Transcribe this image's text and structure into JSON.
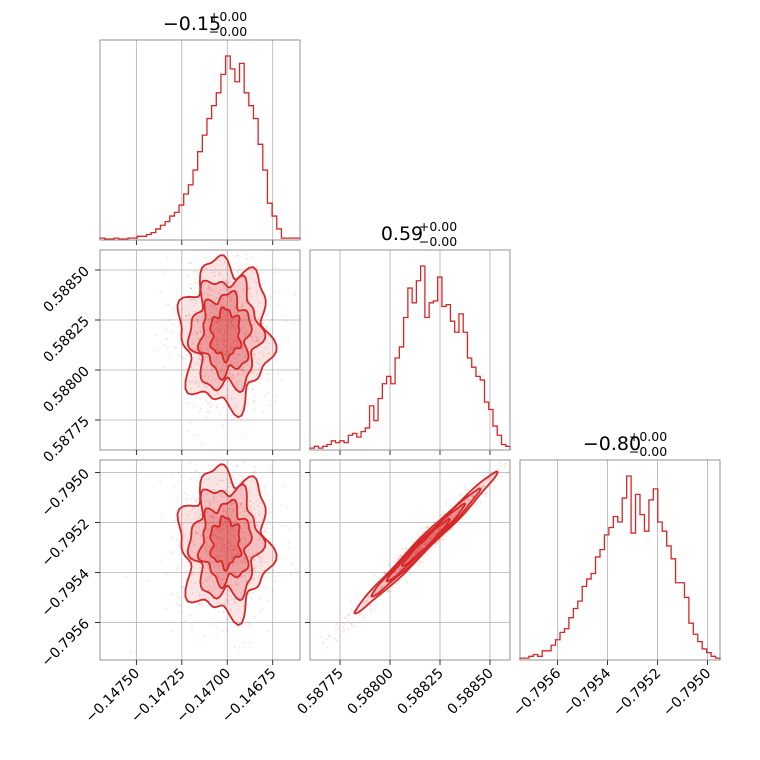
{
  "chart_data": {
    "type": "corner",
    "accent_color": "#d62728",
    "grid": true,
    "params": [
      {
        "title_main": "−0.15",
        "title_sup": "+0.00",
        "title_sub": "−0.00",
        "range": [
          -0.1477,
          -0.1466
        ],
        "ticks": [
          -0.1475,
          -0.14725,
          -0.147,
          -0.14675
        ],
        "tick_labels": [
          "−0.14750",
          "−0.14725",
          "−0.14700",
          "−0.14675"
        ],
        "hist": [
          0.01,
          0.005,
          0.005,
          0.01,
          0.005,
          0.005,
          0.01,
          0.01,
          0.02,
          0.02,
          0.03,
          0.04,
          0.06,
          0.08,
          0.1,
          0.13,
          0.15,
          0.19,
          0.25,
          0.3,
          0.38,
          0.48,
          0.57,
          0.66,
          0.73,
          0.8,
          0.9,
          1.0,
          0.93,
          0.86,
          0.96,
          0.8,
          0.73,
          0.66,
          0.52,
          0.38,
          0.2,
          0.13,
          0.06,
          0.01,
          0.01,
          0.01,
          0.01
        ]
      },
      {
        "title_main": "0.59",
        "title_sup": "+0.00",
        "title_sub": "−0.00",
        "range": [
          0.5876,
          0.5886
        ],
        "ticks": [
          0.58775,
          0.588,
          0.58825,
          0.5885
        ],
        "tick_labels": [
          "0.58775",
          "0.58800",
          "0.58825",
          "0.58850"
        ],
        "hist": [
          0.01,
          0.02,
          0.01,
          0.02,
          0.03,
          0.05,
          0.04,
          0.05,
          0.04,
          0.08,
          0.09,
          0.07,
          0.1,
          0.12,
          0.24,
          0.16,
          0.28,
          0.36,
          0.4,
          0.36,
          0.5,
          0.56,
          0.72,
          0.88,
          0.8,
          0.92,
          1.0,
          0.72,
          0.8,
          0.81,
          0.94,
          0.78,
          0.79,
          0.7,
          0.64,
          0.74,
          0.64,
          0.5,
          0.45,
          0.4,
          0.38,
          0.26,
          0.22,
          0.13,
          0.08,
          0.03,
          0.02
        ]
      },
      {
        "title_main": "−0.80",
        "title_sup": "+0.00",
        "title_sub": "−0.00",
        "range": [
          -0.79575,
          -0.79495
        ],
        "ticks": [
          -0.7956,
          -0.7954,
          -0.7952,
          -0.795
        ],
        "tick_labels": [
          "−0.7956",
          "−0.7954",
          "−0.7952",
          "−0.7950"
        ],
        "hist": [
          0.01,
          0.01,
          0.02,
          0.03,
          0.02,
          0.05,
          0.05,
          0.08,
          0.11,
          0.15,
          0.17,
          0.23,
          0.28,
          0.32,
          0.4,
          0.44,
          0.47,
          0.56,
          0.6,
          0.68,
          0.72,
          0.78,
          0.75,
          0.88,
          1.0,
          0.69,
          0.9,
          0.79,
          0.7,
          0.87,
          0.93,
          0.75,
          0.7,
          0.62,
          0.55,
          0.42,
          0.42,
          0.34,
          0.2,
          0.14,
          0.1,
          0.06,
          0.04,
          0.02,
          0.01
        ]
      }
    ],
    "pairs": [
      {
        "row": 1,
        "col": 0,
        "center": [
          -0.14701,
          0.58818
        ],
        "sd": [
          0.000115,
          0.00017
        ],
        "rho": 0.0
      },
      {
        "row": 2,
        "col": 0,
        "center": [
          -0.14701,
          -0.79528
        ],
        "sd": [
          0.000115,
          0.000135
        ],
        "rho": 0.0
      },
      {
        "row": 2,
        "col": 1,
        "center": [
          0.58818,
          -0.79528
        ],
        "sd": [
          0.00017,
          0.000135
        ],
        "rho": 0.985
      }
    ]
  }
}
